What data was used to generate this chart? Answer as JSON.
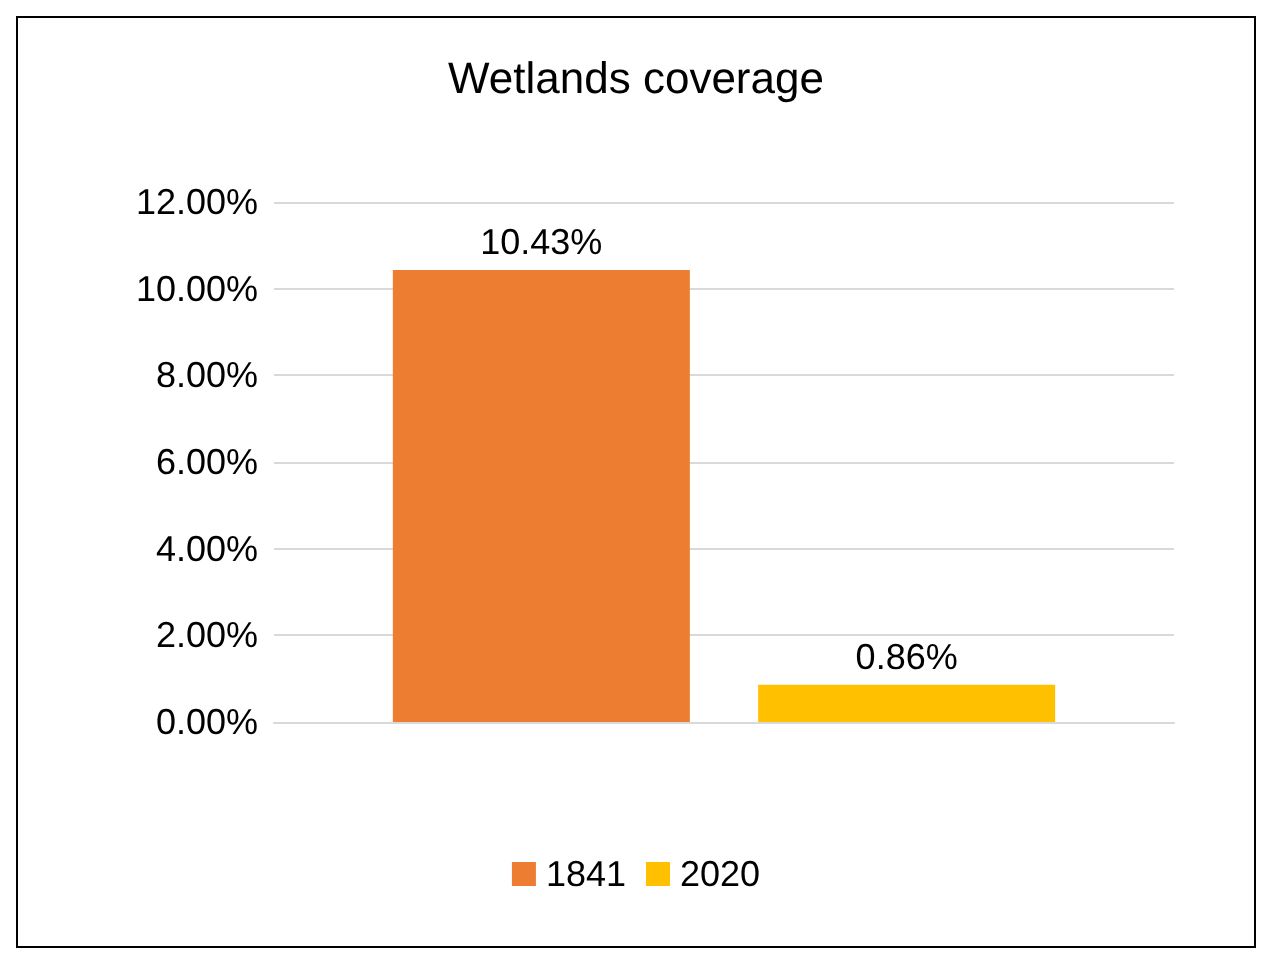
{
  "chart_data": {
    "type": "bar",
    "title": "Wetlands coverage",
    "categories": [
      null
    ],
    "series": [
      {
        "name": "1841",
        "color": "#ed7d31",
        "values": [
          10.43
        ],
        "value_labels": [
          "10.43%"
        ]
      },
      {
        "name": "2020",
        "color": "#ffc000",
        "values": [
          0.86
        ],
        "value_labels": [
          "0.86%"
        ]
      }
    ],
    "ylim": [
      0,
      12
    ],
    "yticks": [
      {
        "value": 0,
        "label": "0.00%"
      },
      {
        "value": 2,
        "label": "2.00%"
      },
      {
        "value": 4,
        "label": "4.00%"
      },
      {
        "value": 6,
        "label": "6.00%"
      },
      {
        "value": 8,
        "label": "8.00%"
      },
      {
        "value": 10,
        "label": "10.00%"
      },
      {
        "value": 12,
        "label": "12.00%"
      }
    ],
    "grid": "y",
    "legend": "bottom"
  }
}
